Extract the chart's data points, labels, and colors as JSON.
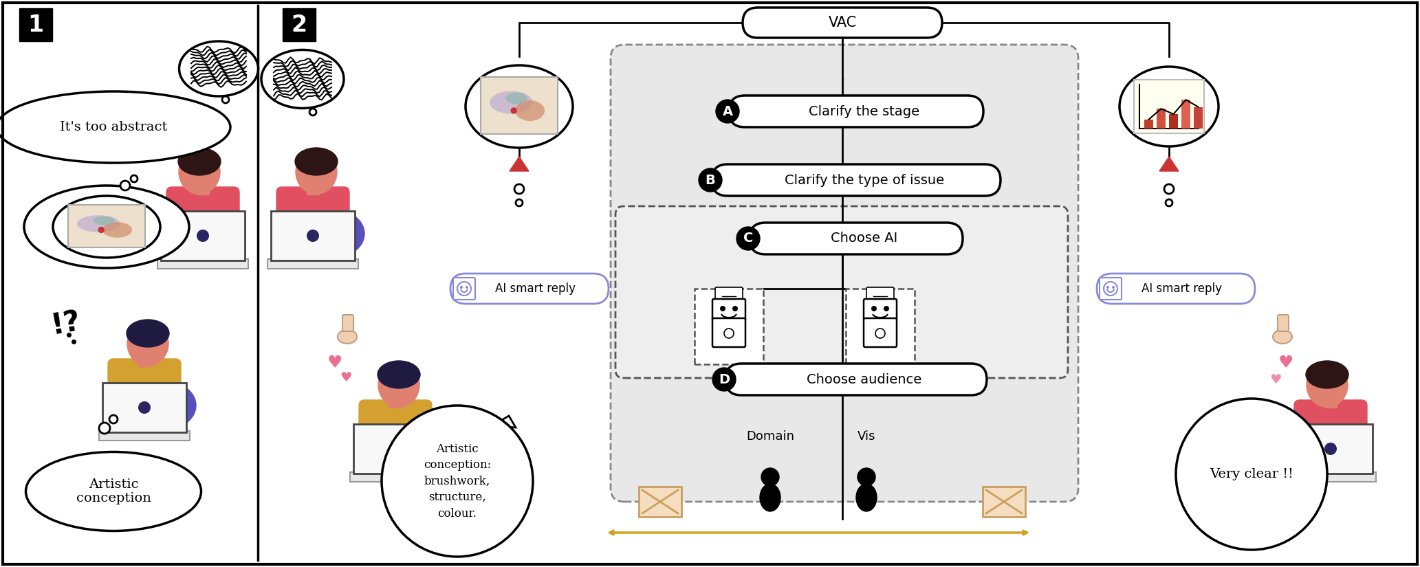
{
  "fig_width": 20.65,
  "fig_height": 8.25,
  "bg_color": "#ffffff",
  "panel1": {
    "label": "1",
    "speech_bubble_text": "It's too abstract",
    "thought_bubble_text": "Artistic\nconception",
    "question_marks": true
  },
  "panel2": {
    "label": "2",
    "vac_label": "VAC",
    "steps": [
      {
        "id": "A",
        "text": "Clarify the stage"
      },
      {
        "id": "B",
        "text": "Clarify the type of issue"
      },
      {
        "id": "C",
        "text": "Choose AI"
      },
      {
        "id": "D",
        "text": "Choose audience"
      }
    ],
    "ai_reply_text": "AI smart reply",
    "speech_bubble_text": "Artistic\nconception:\nbrushwork,\nstructure,\ncolour.",
    "response_bubble_text": "Very clear !!",
    "audience_labels": [
      "Domain",
      "Vis"
    ],
    "person1_shirt": "#e05060",
    "person2_shirt": "#d4a030",
    "person3_shirt": "#e05060",
    "hair1_color": "#2d1515",
    "hair2_color": "#1e1a40",
    "skin_color": "#e08070",
    "chair_color": "#5a4fc0",
    "laptop_color": "#e8e8e8",
    "laptop_screen_dot": "#2a2560",
    "ai_button_border": "#8888dd",
    "ai_button_icon_color": "#8888dd",
    "heart_color": "#e87090",
    "vac_box_color": "#ffffff",
    "step_box_color": "#ffffff",
    "step_label_bg": "#111111",
    "step_label_fg": "#ffffff",
    "main_area_fill": "#e8e8e8",
    "main_area_border": "#888888",
    "dashed_inner_fill": "#eeeeee",
    "triangle_color": "#cc3333",
    "envelope_fill": "#f5ddc0",
    "envelope_border": "#c8a060",
    "arrow_color": "#d4a020",
    "separator_color": "#111111"
  }
}
